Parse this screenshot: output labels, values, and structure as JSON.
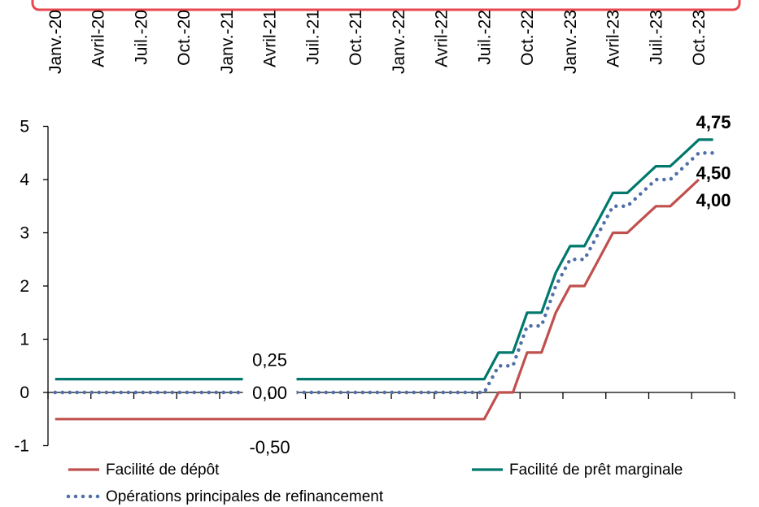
{
  "chart_data": {
    "type": "line",
    "title": "",
    "xlabel": "",
    "ylabel": "",
    "ylim": [
      -1,
      5
    ],
    "yticks": [
      -1,
      0,
      1,
      2,
      3,
      4,
      5
    ],
    "x_range": [
      "2020-01",
      "2023-12"
    ],
    "x_tick_labels": [
      "Janv.-20",
      "Avril-20",
      "Juil.-20",
      "Oct.-20",
      "Janv.-21",
      "Avril-21",
      "Juil.-21",
      "Oct.-21",
      "Janv.-22",
      "Avril-22",
      "Juil.-22",
      "Oct.-22",
      "Janv.-23",
      "Avril-23",
      "Juil.-23",
      "Oct.-23"
    ],
    "x_tick_months": [
      "2020-01",
      "2020-04",
      "2020-07",
      "2020-10",
      "2021-01",
      "2021-04",
      "2021-07",
      "2021-10",
      "2022-01",
      "2022-04",
      "2022-07",
      "2022-10",
      "2023-01",
      "2023-04",
      "2023-07",
      "2023-10"
    ],
    "legend_position": "bottom",
    "grid": false,
    "series": [
      {
        "name": "Facilité de dépôt",
        "color": "#c0504d",
        "style": "solid",
        "points": [
          [
            "2020-01",
            -0.5
          ],
          [
            "2022-07",
            -0.5
          ],
          [
            "2022-08",
            0.0
          ],
          [
            "2022-09",
            0.0
          ],
          [
            "2022-10",
            0.75
          ],
          [
            "2022-11",
            0.75
          ],
          [
            "2022-12",
            1.5
          ],
          [
            "2023-01",
            2.0
          ],
          [
            "2023-02",
            2.0
          ],
          [
            "2023-03",
            2.5
          ],
          [
            "2023-04",
            3.0
          ],
          [
            "2023-05",
            3.0
          ],
          [
            "2023-06",
            3.25
          ],
          [
            "2023-07",
            3.5
          ],
          [
            "2023-08",
            3.5
          ],
          [
            "2023-09",
            3.75
          ],
          [
            "2023-10",
            4.0
          ]
        ]
      },
      {
        "name": "Facilité de prêt marginale",
        "color": "#00786c",
        "style": "solid",
        "points": [
          [
            "2020-01",
            0.25
          ],
          [
            "2022-07",
            0.25
          ],
          [
            "2022-08",
            0.75
          ],
          [
            "2022-09",
            0.75
          ],
          [
            "2022-10",
            1.5
          ],
          [
            "2022-11",
            1.5
          ],
          [
            "2022-12",
            2.25
          ],
          [
            "2023-01",
            2.75
          ],
          [
            "2023-02",
            2.75
          ],
          [
            "2023-03",
            3.25
          ],
          [
            "2023-04",
            3.75
          ],
          [
            "2023-05",
            3.75
          ],
          [
            "2023-06",
            4.0
          ],
          [
            "2023-07",
            4.25
          ],
          [
            "2023-08",
            4.25
          ],
          [
            "2023-09",
            4.5
          ],
          [
            "2023-10",
            4.75
          ],
          [
            "2023-11",
            4.75
          ]
        ]
      },
      {
        "name": "Opérations principales de refinancement",
        "color": "#4f6fa8",
        "style": "dotted",
        "points": [
          [
            "2020-01",
            0.0
          ],
          [
            "2022-07",
            0.0
          ],
          [
            "2022-08",
            0.5
          ],
          [
            "2022-09",
            0.5
          ],
          [
            "2022-10",
            1.25
          ],
          [
            "2022-11",
            1.25
          ],
          [
            "2022-12",
            2.0
          ],
          [
            "2023-01",
            2.5
          ],
          [
            "2023-02",
            2.5
          ],
          [
            "2023-03",
            3.0
          ],
          [
            "2023-04",
            3.5
          ],
          [
            "2023-05",
            3.5
          ],
          [
            "2023-06",
            3.75
          ],
          [
            "2023-07",
            4.0
          ],
          [
            "2023-08",
            4.0
          ],
          [
            "2023-09",
            4.25
          ],
          [
            "2023-10",
            4.5
          ],
          [
            "2023-11",
            4.5
          ]
        ]
      }
    ],
    "annotations": [
      {
        "text": "4,75",
        "bold": true,
        "x": "2023-10",
        "y": 4.75
      },
      {
        "text": "4,50",
        "bold": true,
        "x": "2023-10",
        "y": 4.5
      },
      {
        "text": "4,00",
        "bold": true,
        "x": "2023-10",
        "y": 4.0
      },
      {
        "text": "0,25",
        "bold": false,
        "x": "2021-04",
        "y": 0.25
      },
      {
        "text": "0,00",
        "bold": false,
        "x": "2021-04",
        "y": 0.0
      },
      {
        "text": "-0,50",
        "bold": false,
        "x": "2021-04",
        "y": -0.5
      }
    ]
  }
}
